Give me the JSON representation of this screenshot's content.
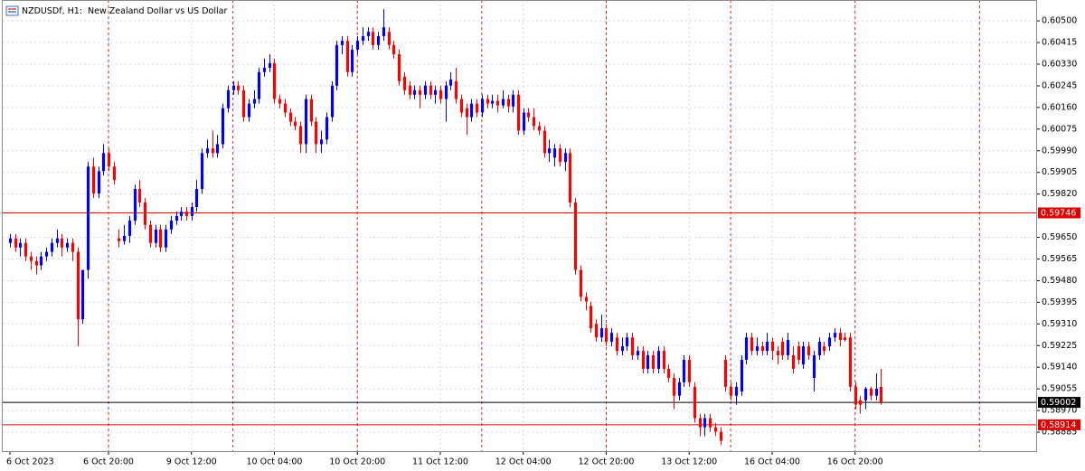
{
  "chart_data": {
    "type": "candlestick",
    "title": "NZDUSDf, H1:  New Zealand Dollar vs US Dollar",
    "up_color": "#0000ff",
    "down_color": "#ff0000",
    "grid": true,
    "xlim": [
      -1.4,
      198.1
    ],
    "ylim": [
      0.58807,
      0.60582
    ],
    "xticks": [
      {
        "value": 0,
        "label": "6 Oct 2023"
      },
      {
        "value": 19,
        "label": "6 Oct 20:00"
      },
      {
        "value": 35,
        "label": "9 Oct 12:00"
      },
      {
        "value": 51,
        "label": "10 Oct 04:00"
      },
      {
        "value": 67,
        "label": "10 Oct 20:00"
      },
      {
        "value": 83,
        "label": "11 Oct 12:00"
      },
      {
        "value": 99,
        "label": "12 Oct 04:00"
      },
      {
        "value": 115,
        "label": "12 Oct 20:00"
      },
      {
        "value": 131,
        "label": "13 Oct 12:00"
      },
      {
        "value": 147,
        "label": "16 Oct 04:00"
      },
      {
        "value": 163,
        "label": "16 Oct 20:00"
      }
    ],
    "yticks": [
      {
        "value": 0.605,
        "label": "0.60500"
      },
      0.60415,
      {
        "value": 0.6033,
        "label": "0.60330"
      },
      0.60245,
      {
        "value": 0.6016,
        "label": "0.60160"
      },
      0.60075,
      {
        "value": 0.5999,
        "label": "0.59990"
      },
      0.59905,
      {
        "value": 0.5982,
        "label": "0.59820"
      },
      {
        "value": 0.5965,
        "label": "0.59650"
      },
      0.59565,
      {
        "value": 0.5948,
        "label": "0.59480"
      },
      0.59395,
      {
        "value": 0.5931,
        "label": "0.59310"
      },
      0.59225,
      {
        "value": 0.5914,
        "label": "0.59140"
      },
      0.59055,
      {
        "value": 0.5897,
        "label": "0.58970"
      },
      0.58885
    ],
    "levels": [
      {
        "value": 0.59746,
        "color": "#e00000"
      },
      {
        "value": 0.59002,
        "color": "#000000"
      },
      {
        "value": 0.58914,
        "color": "#e00000"
      }
    ],
    "open": [
      0.59628,
      0.59646,
      0.5961,
      0.59628,
      0.59575,
      0.59557,
      0.5954,
      0.59575,
      0.59593,
      0.59628,
      0.59646,
      0.5961,
      0.59628,
      0.59593,
      0.59328,
      0.59522,
      0.59928,
      0.59822,
      0.5991,
      0.59981,
      0.59928,
      0.59646,
      0.59635,
      0.59656,
      0.59716,
      0.5984,
      0.59787,
      0.59699,
      0.59628,
      0.59681,
      0.5961,
      0.59681,
      0.59716,
      0.59734,
      0.59751,
      0.59734,
      0.59769,
      0.5984,
      0.59981,
      0.59999,
      0.59981,
      0.60016,
      0.60157,
      0.60228,
      0.60246,
      0.60228,
      0.60122,
      0.60175,
      0.60193,
      0.60299,
      0.60316,
      0.60334,
      0.60193,
      0.60175,
      0.6014,
      0.60104,
      0.60087,
      0.60016,
      0.60193,
      0.60104,
      0.60016,
      0.60034,
      0.60122,
      0.60246,
      0.60405,
      0.60422,
      0.60299,
      0.60387,
      0.60422,
      0.6044,
      0.60457,
      0.60405,
      0.6044,
      0.60457,
      0.60405,
      0.60369,
      0.60281,
      0.60246,
      0.6021,
      0.60228,
      0.6021,
      0.60246,
      0.6021,
      0.60228,
      0.60193,
      0.60246,
      0.60263,
      0.60193,
      0.60157,
      0.60122,
      0.60175,
      0.6014,
      0.60193,
      0.60175,
      0.60186,
      0.60168,
      0.60193,
      0.60164,
      0.6021,
      0.60069,
      0.6014,
      0.60122,
      0.60087,
      0.60069,
      0.59981,
      0.59963,
      0.59999,
      0.59946,
      0.59981,
      0.59787,
      0.59522,
      0.59416,
      0.59381,
      0.5931,
      0.59257,
      0.59293,
      0.5924,
      0.59257,
      0.59204,
      0.59222,
      0.59257,
      0.59187,
      0.59204,
      0.59134,
      0.59187,
      0.59134,
      0.59204,
      0.59134,
      0.59098,
      0.59028,
      0.59081,
      0.59169,
      0.59063,
      0.5894,
      0.58904,
      0.5894,
      0.58904,
      0.58887,
      0.59169,
      0.59063,
      0.59028,
      0.59045,
      0.59169,
      0.59257,
      0.59204,
      0.59222,
      0.59204,
      0.5924,
      0.59204,
      0.5924,
      0.59187,
      0.59187,
      0.59222,
      0.59151,
      0.59222,
      0.59098,
      0.59187,
      0.59222,
      0.59222,
      0.59257,
      0.59275,
      0.59257,
      0.59257,
      0.59063,
      0.5901,
      0.5901,
      0.59056,
      0.59028,
      0.59063
    ],
    "high": [
      0.59663,
      0.59663,
      0.59646,
      0.59646,
      0.59593,
      0.59575,
      0.59593,
      0.5961,
      0.59646,
      0.59681,
      0.59663,
      0.59646,
      0.59646,
      0.5961,
      0.59522,
      0.59946,
      0.59963,
      0.59928,
      0.60016,
      0.59999,
      0.59946,
      0.59681,
      0.59699,
      0.59734,
      0.59857,
      0.59875,
      0.59804,
      0.59716,
      0.59699,
      0.59699,
      0.59699,
      0.59734,
      0.59751,
      0.59769,
      0.59769,
      0.59787,
      0.59875,
      0.59999,
      0.60034,
      0.60069,
      0.60052,
      0.60175,
      0.60246,
      0.60263,
      0.60263,
      0.60246,
      0.60193,
      0.60228,
      0.60316,
      0.60352,
      0.60369,
      0.60352,
      0.6021,
      0.60193,
      0.60157,
      0.60122,
      0.60104,
      0.6021,
      0.6021,
      0.60122,
      0.60069,
      0.6014,
      0.60263,
      0.60422,
      0.6044,
      0.6044,
      0.60405,
      0.6044,
      0.60475,
      0.60475,
      0.60475,
      0.60457,
      0.60546,
      0.60475,
      0.60422,
      0.60387,
      0.60299,
      0.60263,
      0.60246,
      0.60246,
      0.60263,
      0.60263,
      0.60246,
      0.60246,
      0.60263,
      0.60299,
      0.60316,
      0.6021,
      0.60175,
      0.60193,
      0.60193,
      0.6021,
      0.6021,
      0.6021,
      0.6021,
      0.60228,
      0.6021,
      0.60228,
      0.60228,
      0.60157,
      0.60157,
      0.60157,
      0.60104,
      0.60087,
      0.60034,
      0.60016,
      0.60016,
      0.59999,
      0.59999,
      0.59804,
      0.5954,
      0.59434,
      0.59398,
      0.59328,
      0.59346,
      0.5931,
      0.59293,
      0.59275,
      0.59257,
      0.59275,
      0.59275,
      0.59222,
      0.59222,
      0.59204,
      0.59204,
      0.59222,
      0.59222,
      0.59151,
      0.59116,
      0.59098,
      0.59187,
      0.59187,
      0.59081,
      0.58957,
      0.58957,
      0.58957,
      0.58922,
      0.58904,
      0.59187,
      0.59081,
      0.59081,
      0.59187,
      0.59275,
      0.59275,
      0.59257,
      0.5924,
      0.59275,
      0.59257,
      0.59222,
      0.59257,
      0.59275,
      0.59222,
      0.5924,
      0.5924,
      0.5924,
      0.59204,
      0.59257,
      0.5924,
      0.59275,
      0.59293,
      0.59293,
      0.59275,
      0.59275,
      0.59081,
      0.59028,
      0.59063,
      0.59063,
      0.59116,
      0.59134
    ],
    "low": [
      0.5961,
      0.59593,
      0.59575,
      0.59557,
      0.59522,
      0.59504,
      0.59522,
      0.59557,
      0.59575,
      0.5961,
      0.59575,
      0.59593,
      0.59557,
      0.59222,
      0.5931,
      0.59487,
      0.59804,
      0.59804,
      0.59893,
      0.5991,
      0.59857,
      0.5961,
      0.59621,
      0.59628,
      0.59699,
      0.59769,
      0.59681,
      0.5961,
      0.5961,
      0.59593,
      0.59593,
      0.59663,
      0.59699,
      0.59716,
      0.59716,
      0.59716,
      0.59751,
      0.59822,
      0.59963,
      0.59963,
      0.59963,
      0.59999,
      0.6014,
      0.6021,
      0.6021,
      0.60104,
      0.60104,
      0.60157,
      0.60175,
      0.60281,
      0.60299,
      0.60175,
      0.60157,
      0.60122,
      0.60087,
      0.60069,
      0.59981,
      0.59981,
      0.60087,
      0.59981,
      0.59981,
      0.60016,
      0.60104,
      0.60228,
      0.60369,
      0.60281,
      0.60281,
      0.60369,
      0.60405,
      0.60422,
      0.60387,
      0.60387,
      0.60422,
      0.60387,
      0.60352,
      0.60246,
      0.6021,
      0.60193,
      0.60193,
      0.60157,
      0.60193,
      0.60193,
      0.60175,
      0.60175,
      0.60104,
      0.60228,
      0.60175,
      0.60122,
      0.60052,
      0.60104,
      0.60122,
      0.60122,
      0.60157,
      0.60157,
      0.6014,
      0.60157,
      0.6014,
      0.6014,
      0.60052,
      0.60052,
      0.60104,
      0.60069,
      0.60052,
      0.59963,
      0.59946,
      0.59928,
      0.59928,
      0.5991,
      0.59769,
      0.59504,
      0.59398,
      0.59363,
      0.59275,
      0.5924,
      0.5924,
      0.59222,
      0.59222,
      0.59187,
      0.59187,
      0.59204,
      0.59169,
      0.59169,
      0.59116,
      0.59116,
      0.59116,
      0.59116,
      0.59116,
      0.59081,
      0.58975,
      0.5901,
      0.59063,
      0.59063,
      0.58922,
      0.58869,
      0.58869,
      0.58887,
      0.58869,
      0.58834,
      0.59045,
      0.5901,
      0.58993,
      0.59028,
      0.59151,
      0.59187,
      0.59187,
      0.59187,
      0.59187,
      0.59169,
      0.59151,
      0.59169,
      0.59169,
      0.59116,
      0.59151,
      0.59134,
      0.59169,
      0.59045,
      0.59169,
      0.59187,
      0.59204,
      0.5924,
      0.59222,
      0.5924,
      0.59045,
      0.58975,
      0.58957,
      0.58975,
      0.5901,
      0.5901,
      0.58993
    ],
    "close": [
      0.59646,
      0.5961,
      0.59628,
      0.59575,
      0.59557,
      0.5954,
      0.59575,
      0.59593,
      0.59628,
      0.59646,
      0.5961,
      0.59628,
      0.59593,
      0.59328,
      0.59522,
      0.59928,
      0.59822,
      0.5991,
      0.59981,
      0.59928,
      0.59875,
      0.59635,
      0.59656,
      0.59716,
      0.5984,
      0.59787,
      0.59699,
      0.59628,
      0.59681,
      0.5961,
      0.59681,
      0.59716,
      0.59734,
      0.59751,
      0.59734,
      0.59769,
      0.5984,
      0.59981,
      0.59999,
      0.59981,
      0.60016,
      0.60157,
      0.60228,
      0.60246,
      0.60228,
      0.60122,
      0.60175,
      0.60193,
      0.60299,
      0.60316,
      0.60334,
      0.60193,
      0.60175,
      0.6014,
      0.60104,
      0.60087,
      0.60016,
      0.60193,
      0.60104,
      0.60016,
      0.60034,
      0.60122,
      0.60246,
      0.60405,
      0.60422,
      0.60299,
      0.60387,
      0.60422,
      0.6044,
      0.60457,
      0.60405,
      0.6044,
      0.60475,
      0.60405,
      0.60369,
      0.60263,
      0.60228,
      0.6021,
      0.60228,
      0.6021,
      0.60246,
      0.6021,
      0.60228,
      0.60193,
      0.60246,
      0.6027,
      0.60193,
      0.6014,
      0.60122,
      0.60175,
      0.6014,
      0.60193,
      0.60175,
      0.60186,
      0.60168,
      0.60193,
      0.60164,
      0.6021,
      0.60069,
      0.6014,
      0.60122,
      0.60087,
      0.60069,
      0.59981,
      0.59999,
      0.59999,
      0.59946,
      0.59981,
      0.59787,
      0.59522,
      0.59416,
      0.59398,
      0.59293,
      0.59257,
      0.59293,
      0.5924,
      0.59275,
      0.59204,
      0.59222,
      0.59257,
      0.59187,
      0.59204,
      0.59134,
      0.59187,
      0.59134,
      0.59204,
      0.59134,
      0.59098,
      0.59028,
      0.59081,
      0.59169,
      0.59081,
      0.5894,
      0.58904,
      0.5894,
      0.58904,
      0.58887,
      0.58851,
      0.59063,
      0.59028,
      0.59063,
      0.59169,
      0.59257,
      0.59204,
      0.59222,
      0.59204,
      0.5924,
      0.59204,
      0.59187,
      0.59187,
      0.59247,
      0.59134,
      0.59169,
      0.59222,
      0.59187,
      0.59187,
      0.5924,
      0.59204,
      0.59257,
      0.59275,
      0.59247,
      0.59247,
      0.59063,
      0.58993,
      0.58993,
      0.59056,
      0.59028,
      0.59056,
      0.59002
    ]
  }
}
